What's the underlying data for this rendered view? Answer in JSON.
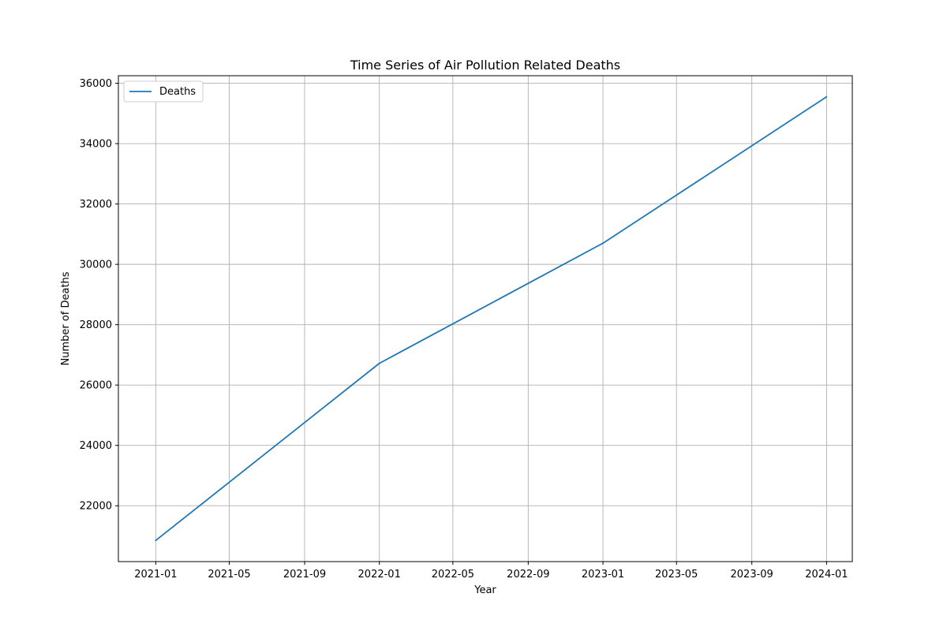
{
  "chart_data": {
    "type": "line",
    "title": "Time Series of Air Pollution Related Deaths",
    "xlabel": "Year",
    "ylabel": "Number of Deaths",
    "grid": true,
    "legend_position": "upper left",
    "x_axis_type": "date",
    "xlim": [
      "2020-11-01",
      "2024-02-12"
    ],
    "ylim": [
      20150,
      36250
    ],
    "x_ticks": [
      "2021-01",
      "2021-05",
      "2021-09",
      "2022-01",
      "2022-05",
      "2022-09",
      "2023-01",
      "2023-05",
      "2023-09",
      "2024-01"
    ],
    "y_ticks": [
      22000,
      24000,
      26000,
      28000,
      30000,
      32000,
      34000,
      36000
    ],
    "series": [
      {
        "name": "Deaths",
        "color": "#1f77b4",
        "points": [
          {
            "x": "2021-01-01",
            "y": 20850
          },
          {
            "x": "2022-01-01",
            "y": 26720
          },
          {
            "x": "2023-01-01",
            "y": 30700
          },
          {
            "x": "2024-01-01",
            "y": 35550
          }
        ]
      }
    ]
  }
}
